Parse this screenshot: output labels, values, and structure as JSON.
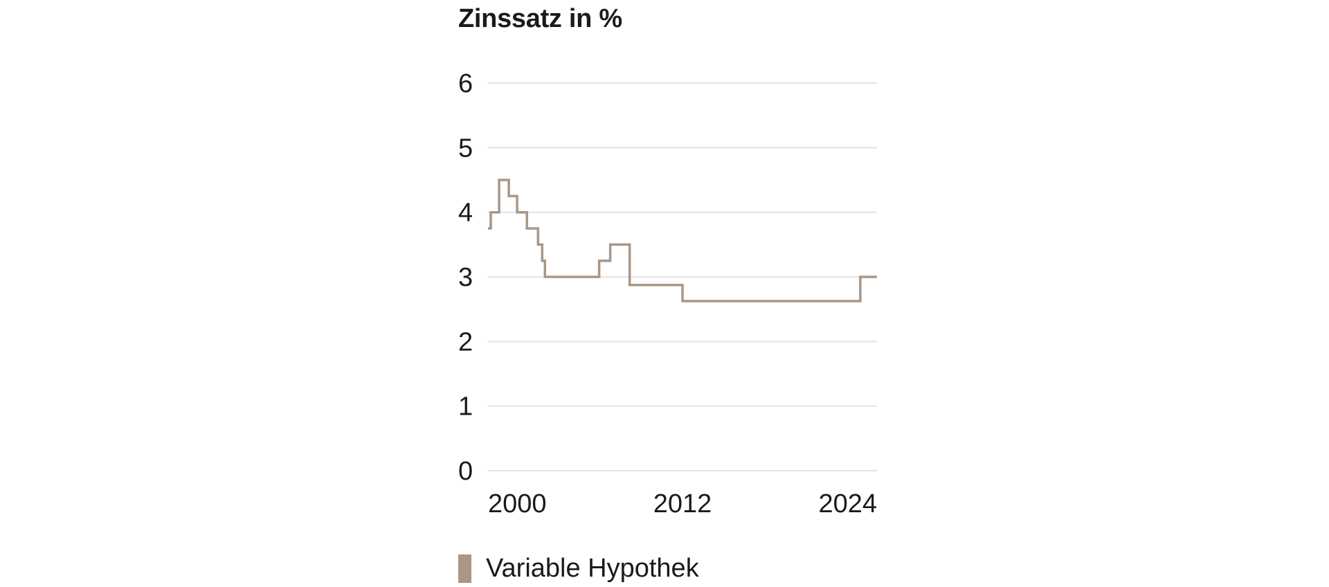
{
  "chart_data": {
    "type": "line",
    "title": "Zinssatz in %",
    "xlabel": "",
    "ylabel": "",
    "xlim": [
      1998.0,
      2026.0
    ],
    "ylim": [
      0,
      6
    ],
    "yticks": [
      "0",
      "1",
      "2",
      "3",
      "4",
      "5",
      "6"
    ],
    "xticks": [
      "2000",
      "2012",
      "2024"
    ],
    "grid": true,
    "legend_position": "bottom-left",
    "colors": {
      "line": "#a99684",
      "grid": "#e3e3e3",
      "text": "#1a1a1a"
    },
    "series": [
      {
        "name": "Variable Hypothek",
        "step": true,
        "x": [
          1998.0,
          1998.2,
          1998.8,
          1999.5,
          2000.1,
          2000.8,
          2001.6,
          2001.9,
          2002.1,
          2002.3,
          2006.0,
          2006.8,
          2008.2,
          2008.9,
          2012.0,
          2024.8
        ],
        "values": [
          3.75,
          4.0,
          4.5,
          4.25,
          4.0,
          3.75,
          3.5,
          3.25,
          3.0,
          3.0,
          3.25,
          3.5,
          2.875,
          2.875,
          2.625,
          3.0
        ],
        "x_end": 2026.0
      }
    ]
  }
}
